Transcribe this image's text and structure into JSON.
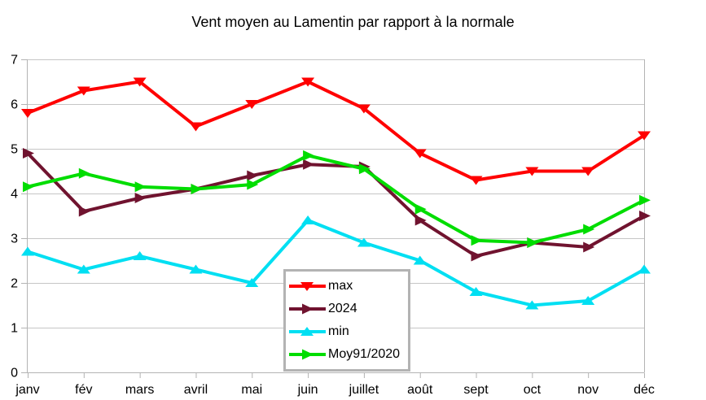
{
  "title": "Vent moyen au Lamentin par rapport à la normale",
  "chart_data": {
    "type": "line",
    "title": "Vent moyen au Lamentin par rapport à la normale",
    "categories": [
      "janv",
      "fév",
      "mars",
      "avril",
      "mai",
      "juin",
      "juillet",
      "août",
      "sept",
      "oct",
      "nov",
      "déc"
    ],
    "series": [
      {
        "name": "max",
        "color": "#ff0000",
        "marker": "triangle-down",
        "values": [
          5.8,
          6.3,
          6.5,
          5.5,
          6.0,
          6.5,
          5.9,
          4.9,
          4.3,
          4.5,
          4.5,
          5.3
        ]
      },
      {
        "name": "2024",
        "color": "#70132f",
        "marker": "triangle-right",
        "values": [
          4.9,
          3.6,
          3.9,
          4.1,
          4.4,
          4.65,
          4.6,
          3.4,
          2.6,
          2.9,
          2.8,
          3.5
        ]
      },
      {
        "name": "min",
        "color": "#00dff2",
        "marker": "triangle-up",
        "values": [
          2.7,
          2.3,
          2.6,
          2.3,
          2.0,
          3.4,
          2.9,
          2.5,
          1.8,
          1.5,
          1.6,
          2.3
        ]
      },
      {
        "name": "Moy91/2020",
        "color": "#00dd00",
        "marker": "triangle-right",
        "values": [
          4.15,
          4.45,
          4.15,
          4.1,
          4.2,
          4.85,
          4.55,
          3.65,
          2.95,
          2.9,
          3.2,
          3.85
        ]
      }
    ],
    "xlabel": "",
    "ylabel": "",
    "ylim": [
      0,
      7
    ],
    "y_ticks": [
      "0",
      "1",
      "2",
      "3",
      "4",
      "5",
      "6",
      "7"
    ],
    "grid": true,
    "legend_position": "inside-bottom-center",
    "axis_color": "#b3b3b3",
    "grid_color": "#c6c6c6",
    "text_color": "#000000",
    "background": "#ffffff"
  }
}
